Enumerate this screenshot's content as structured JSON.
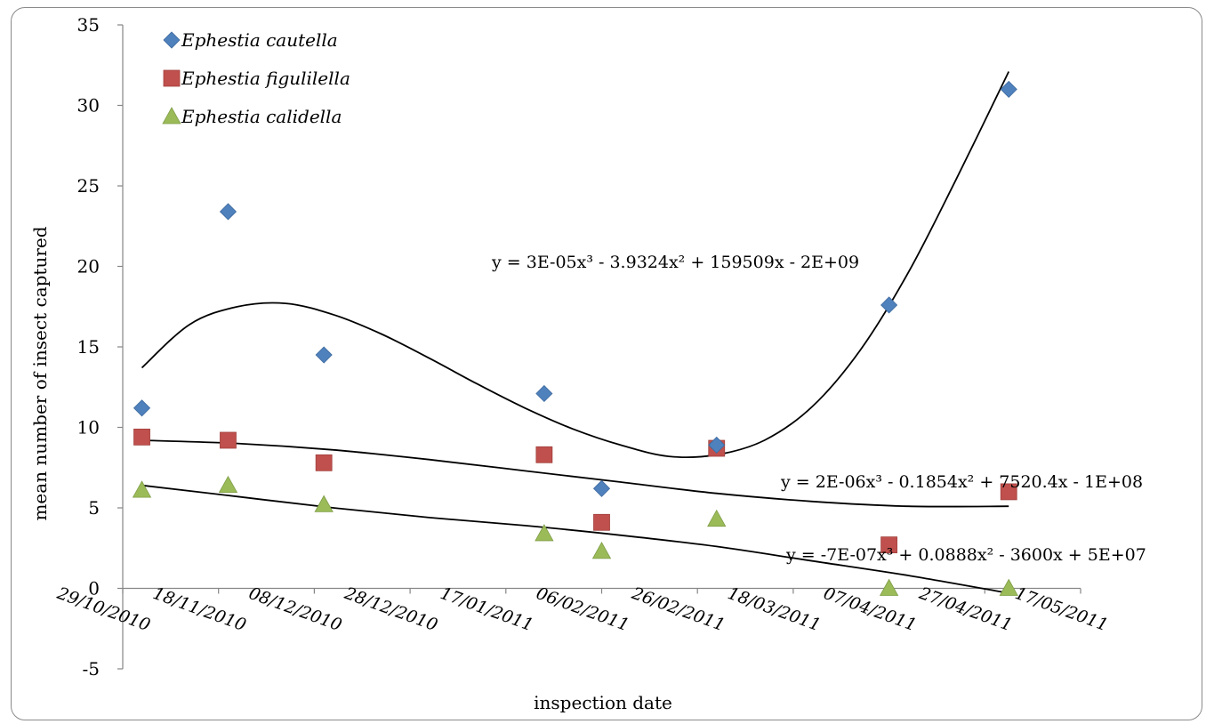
{
  "chart_data": {
    "type": "scatter",
    "xlabel": "inspection date",
    "ylabel": "mean number of insect captured",
    "ylim": [
      -5,
      35
    ],
    "y_ticks": [
      -5,
      0,
      5,
      10,
      15,
      20,
      25,
      30,
      35
    ],
    "x_tick_labels": [
      "29/10/2010",
      "18/11/2010",
      "08/12/2010",
      "28/12/2010",
      "17/01/2011",
      "06/02/2011",
      "26/02/2011",
      "18/03/2011",
      "07/04/2011",
      "27/04/2011",
      "17/05/2011"
    ],
    "xlim": [
      "2010-10-29",
      "2011-05-17"
    ],
    "grid": false,
    "legend_position": "top-left",
    "series": [
      {
        "name": "Ephestia cautella",
        "marker": "diamond",
        "color": "#4f81bd",
        "points": [
          {
            "x": "2010-11-02",
            "y": 11.2
          },
          {
            "x": "2010-11-20",
            "y": 23.4
          },
          {
            "x": "2010-12-10",
            "y": 14.5
          },
          {
            "x": "2011-01-25",
            "y": 12.1
          },
          {
            "x": "2011-02-06",
            "y": 6.2
          },
          {
            "x": "2011-03-02",
            "y": 8.9
          },
          {
            "x": "2011-04-07",
            "y": 17.6
          },
          {
            "x": "2011-05-02",
            "y": 31.0
          }
        ],
        "trendline": {
          "equation": "y = 3E-05x³ - 3.9324x² + 159509x - 2E+09",
          "points": [
            {
              "x": "2010-11-02",
              "y": 13.7
            },
            {
              "x": "2010-11-12",
              "y": 16.4
            },
            {
              "x": "2010-11-22",
              "y": 17.5
            },
            {
              "x": "2010-12-02",
              "y": 17.7
            },
            {
              "x": "2010-12-12",
              "y": 17.0
            },
            {
              "x": "2010-12-22",
              "y": 15.8
            },
            {
              "x": "2011-01-01",
              "y": 14.3
            },
            {
              "x": "2011-01-11",
              "y": 12.7
            },
            {
              "x": "2011-01-21",
              "y": 11.2
            },
            {
              "x": "2011-01-31",
              "y": 9.9
            },
            {
              "x": "2011-02-10",
              "y": 8.9
            },
            {
              "x": "2011-02-20",
              "y": 8.2
            },
            {
              "x": "2011-03-02",
              "y": 8.3
            },
            {
              "x": "2011-03-12",
              "y": 9.2
            },
            {
              "x": "2011-03-22",
              "y": 11.3
            },
            {
              "x": "2011-04-01",
              "y": 14.8
            },
            {
              "x": "2011-04-11",
              "y": 19.6
            },
            {
              "x": "2011-04-21",
              "y": 25.4
            },
            {
              "x": "2011-05-02",
              "y": 32.1
            }
          ]
        }
      },
      {
        "name": "Ephestia figulilella",
        "marker": "square",
        "color": "#c0504d",
        "points": [
          {
            "x": "2010-11-02",
            "y": 9.4
          },
          {
            "x": "2010-11-20",
            "y": 9.2
          },
          {
            "x": "2010-12-10",
            "y": 7.8
          },
          {
            "x": "2011-01-25",
            "y": 8.3
          },
          {
            "x": "2011-02-06",
            "y": 4.1
          },
          {
            "x": "2011-03-02",
            "y": 8.7
          },
          {
            "x": "2011-04-07",
            "y": 2.7
          },
          {
            "x": "2011-05-02",
            "y": 6.0
          }
        ],
        "trendline": {
          "equation": "y = 2E-06x³ - 0.1854x² + 7520.4x - 1E+08",
          "points": [
            {
              "x": "2010-11-02",
              "y": 9.2
            },
            {
              "x": "2010-11-22",
              "y": 9.0
            },
            {
              "x": "2010-12-12",
              "y": 8.6
            },
            {
              "x": "2011-01-01",
              "y": 8.0
            },
            {
              "x": "2011-01-21",
              "y": 7.3
            },
            {
              "x": "2011-02-10",
              "y": 6.6
            },
            {
              "x": "2011-03-02",
              "y": 5.9
            },
            {
              "x": "2011-03-22",
              "y": 5.4
            },
            {
              "x": "2011-04-11",
              "y": 5.1
            },
            {
              "x": "2011-05-02",
              "y": 5.1
            }
          ]
        }
      },
      {
        "name": "Ephestia calidella",
        "marker": "triangle",
        "color": "#9bbb59",
        "points": [
          {
            "x": "2010-11-02",
            "y": 6.1
          },
          {
            "x": "2010-11-20",
            "y": 6.4
          },
          {
            "x": "2010-12-10",
            "y": 5.2
          },
          {
            "x": "2011-01-25",
            "y": 3.4
          },
          {
            "x": "2011-02-06",
            "y": 2.3
          },
          {
            "x": "2011-03-02",
            "y": 4.3
          },
          {
            "x": "2011-04-07",
            "y": 0.0
          },
          {
            "x": "2011-05-02",
            "y": 0.0
          }
        ],
        "trendline": {
          "equation": "y = -7E-07x³ + 0.0888x² - 3600x + 5E+07",
          "points": [
            {
              "x": "2010-11-02",
              "y": 6.4
            },
            {
              "x": "2010-11-22",
              "y": 5.7
            },
            {
              "x": "2010-12-12",
              "y": 5.0
            },
            {
              "x": "2011-01-01",
              "y": 4.4
            },
            {
              "x": "2011-01-21",
              "y": 3.9
            },
            {
              "x": "2011-02-10",
              "y": 3.3
            },
            {
              "x": "2011-03-02",
              "y": 2.6
            },
            {
              "x": "2011-03-22",
              "y": 1.7
            },
            {
              "x": "2011-04-11",
              "y": 0.8
            },
            {
              "x": "2011-05-02",
              "y": -0.3
            }
          ]
        }
      }
    ]
  }
}
